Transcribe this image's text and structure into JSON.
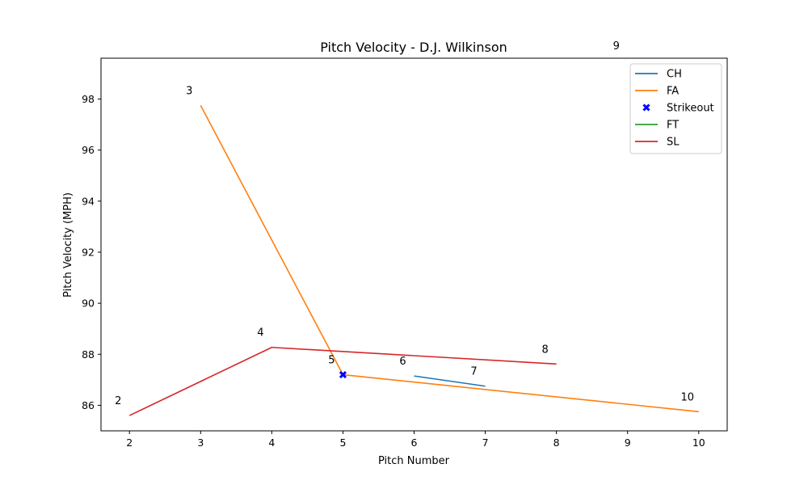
{
  "chart_data": {
    "type": "line",
    "title": "Pitch Velocity - D.J. Wilkinson",
    "xlabel": "Pitch Number",
    "ylabel": "Pitch Velocity (MPH)",
    "xlim": [
      1.6,
      10.4
    ],
    "ylim": [
      85.0,
      99.6
    ],
    "x_ticks": [
      2,
      3,
      4,
      5,
      6,
      7,
      8,
      9,
      10
    ],
    "y_ticks": [
      86,
      88,
      90,
      92,
      94,
      96,
      98
    ],
    "grid": false,
    "legend_position": "top-right",
    "series": [
      {
        "name": "CH",
        "color": "#1f77b4",
        "kind": "line",
        "x": [
          6,
          7
        ],
        "y": [
          87.15,
          86.75
        ]
      },
      {
        "name": "FA",
        "color": "#ff7f0e",
        "kind": "line",
        "x": [
          3,
          5,
          10
        ],
        "y": [
          97.75,
          87.2,
          85.75
        ]
      },
      {
        "name": "Strikeout",
        "color": "#0000ff",
        "kind": "marker",
        "marker": "x-filled",
        "x": [
          5
        ],
        "y": [
          87.2
        ]
      },
      {
        "name": "FT",
        "color": "#2ca02c",
        "kind": "line",
        "x": [
          9
        ],
        "y": [
          99.5
        ]
      },
      {
        "name": "SL",
        "color": "#d62728",
        "kind": "line",
        "x": [
          2,
          4,
          8
        ],
        "y": [
          85.6,
          88.27,
          87.62
        ]
      }
    ],
    "annotations": [
      {
        "text": "2",
        "x": 2,
        "y": 85.6
      },
      {
        "text": "3",
        "x": 3,
        "y": 97.75
      },
      {
        "text": "4",
        "x": 4,
        "y": 88.27
      },
      {
        "text": "5",
        "x": 5,
        "y": 87.2
      },
      {
        "text": "6",
        "x": 6,
        "y": 87.15
      },
      {
        "text": "7",
        "x": 7,
        "y": 86.75
      },
      {
        "text": "8",
        "x": 8,
        "y": 87.62
      },
      {
        "text": "9",
        "x": 9,
        "y": 99.5
      },
      {
        "text": "10",
        "x": 10,
        "y": 85.75
      }
    ]
  }
}
